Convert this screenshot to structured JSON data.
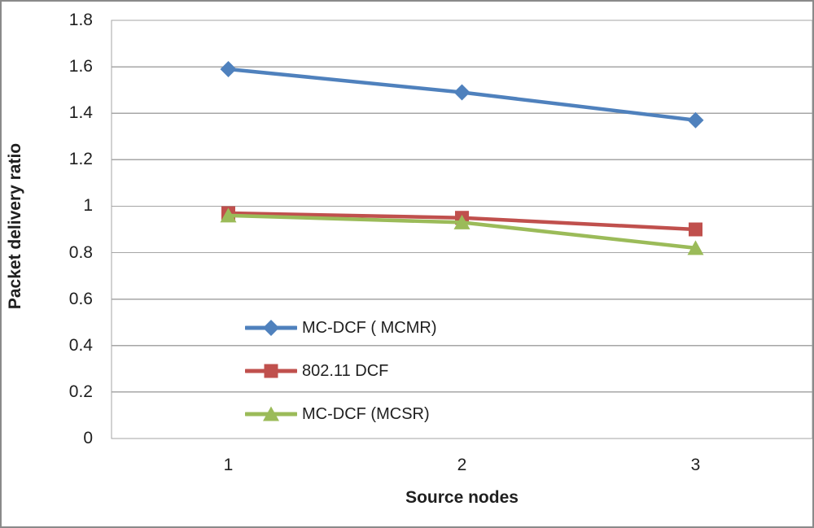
{
  "chart_data": {
    "type": "line",
    "title": "",
    "xlabel": "Source nodes",
    "ylabel": "Packet delivery ratio",
    "categories": [
      "1",
      "2",
      "3"
    ],
    "y_ticks": [
      "0",
      "0.2",
      "0.4",
      "0.6",
      "0.8",
      "1",
      "1.2",
      "1.4",
      "1.6",
      "1.8"
    ],
    "ylim": [
      0,
      1.8
    ],
    "y_step": 0.2,
    "grid": "horizontal",
    "legend_position": "inside-center-left",
    "series": [
      {
        "name": "MC-DCF ( MCMR)",
        "color": "#4f81bd",
        "marker": "diamond",
        "values": [
          1.59,
          1.49,
          1.37
        ]
      },
      {
        "name": "802.11 DCF",
        "color": "#c0504d",
        "marker": "square",
        "values": [
          0.97,
          0.95,
          0.9
        ]
      },
      {
        "name": "MC-DCF (MCSR)",
        "color": "#9bbb59",
        "marker": "triangle",
        "values": [
          0.96,
          0.93,
          0.82
        ]
      }
    ]
  },
  "ui_colors": {
    "gridline": "#a6a6a6",
    "plot_border": "#a6a6a6",
    "outer_border": "#8a8a8a",
    "text": "#1f1f1f",
    "background": "#ffffff"
  }
}
